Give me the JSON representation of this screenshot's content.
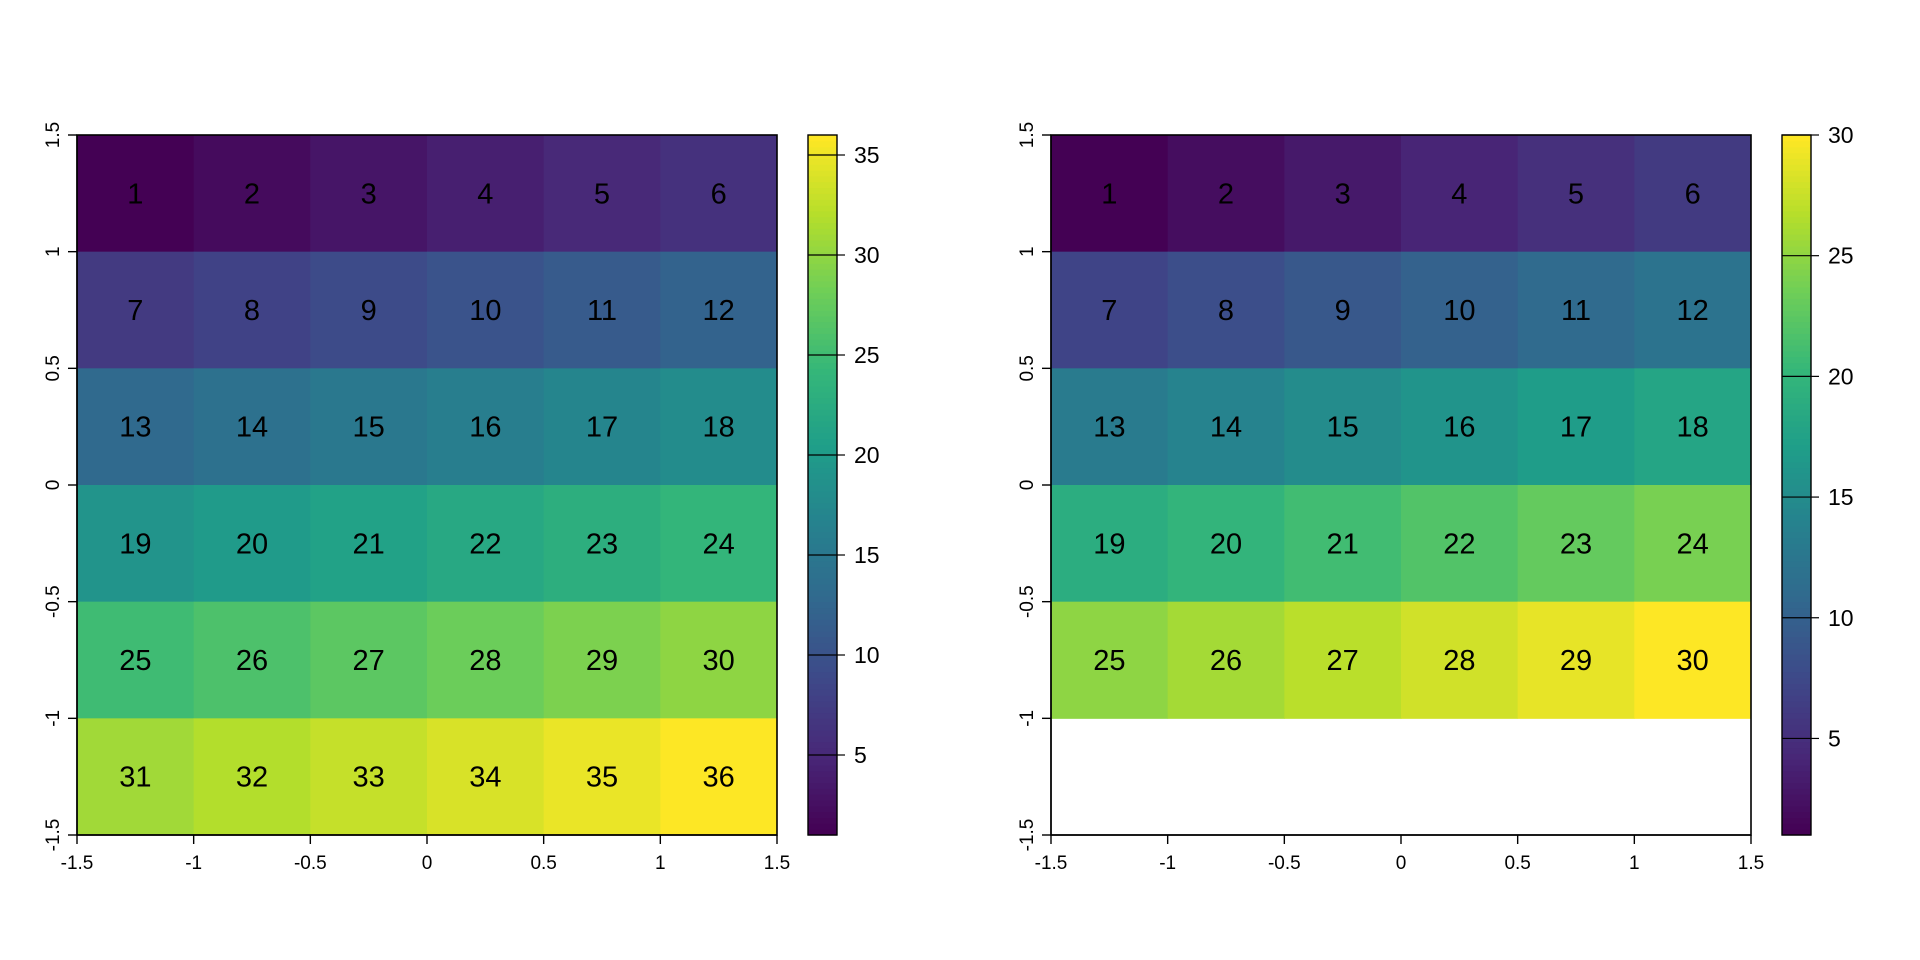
{
  "chart_data": [
    {
      "type": "heatmap",
      "title": "",
      "xlabel": "",
      "ylabel": "",
      "xlim": [
        -1.5,
        1.5
      ],
      "ylim": [
        -1.5,
        1.5
      ],
      "x_ticks": [
        "-1.5",
        "-1",
        "-0.5",
        "0",
        "0.5",
        "1",
        "1.5"
      ],
      "y_ticks": [
        "-1.5",
        "-1",
        "-0.5",
        "0",
        "0.5",
        "1",
        "1.5"
      ],
      "grid": false,
      "legend": "right",
      "colormap": "viridis",
      "ncols": 6,
      "rows": [
        [
          1,
          2,
          3,
          4,
          5,
          6
        ],
        [
          7,
          8,
          9,
          10,
          11,
          12
        ],
        [
          13,
          14,
          15,
          16,
          17,
          18
        ],
        [
          19,
          20,
          21,
          22,
          23,
          24
        ],
        [
          25,
          26,
          27,
          28,
          29,
          30
        ],
        [
          31,
          32,
          33,
          34,
          35,
          36
        ]
      ],
      "cell_labels": [
        [
          "1",
          "2",
          "3",
          "4",
          "5",
          "6"
        ],
        [
          "7",
          "8",
          "9",
          "10",
          "11",
          "12"
        ],
        [
          "13",
          "14",
          "15",
          "16",
          "17",
          "18"
        ],
        [
          "19",
          "20",
          "21",
          "22",
          "23",
          "24"
        ],
        [
          "25",
          "26",
          "27",
          "28",
          "29",
          "30"
        ],
        [
          "31",
          "32",
          "33",
          "34",
          "35",
          "36"
        ]
      ],
      "colorbar": {
        "range": [
          1,
          36
        ],
        "ticks": [
          5,
          10,
          15,
          20,
          25,
          30,
          35
        ],
        "tick_labels": [
          "5",
          "10",
          "15",
          "20",
          "25",
          "30",
          "35"
        ]
      }
    },
    {
      "type": "heatmap",
      "title": "",
      "xlabel": "",
      "ylabel": "",
      "xlim": [
        -1.5,
        1.5
      ],
      "ylim": [
        -1.5,
        1.5
      ],
      "x_ticks": [
        "-1.5",
        "-1",
        "-0.5",
        "0",
        "0.5",
        "1",
        "1.5"
      ],
      "y_ticks": [
        "-1.5",
        "-1",
        "-0.5",
        "0",
        "0.5",
        "1",
        "1.5"
      ],
      "grid": false,
      "legend": "right",
      "colormap": "viridis",
      "ncols": 6,
      "rows": [
        [
          1,
          2,
          3,
          4,
          5,
          6
        ],
        [
          7,
          8,
          9,
          10,
          11,
          12
        ],
        [
          13,
          14,
          15,
          16,
          17,
          18
        ],
        [
          19,
          20,
          21,
          22,
          23,
          24
        ],
        [
          25,
          26,
          27,
          28,
          29,
          30
        ]
      ],
      "cell_labels": [
        [
          "1",
          "2",
          "3",
          "4",
          "5",
          "6"
        ],
        [
          "7",
          "8",
          "9",
          "10",
          "11",
          "12"
        ],
        [
          "13",
          "14",
          "15",
          "16",
          "17",
          "18"
        ],
        [
          "19",
          "20",
          "21",
          "22",
          "23",
          "24"
        ],
        [
          "25",
          "26",
          "27",
          "28",
          "29",
          "30"
        ]
      ],
      "colorbar": {
        "range": [
          1,
          30
        ],
        "ticks": [
          5,
          10,
          15,
          20,
          25,
          30
        ],
        "tick_labels": [
          "5",
          "10",
          "15",
          "20",
          "25",
          "30"
        ]
      }
    }
  ]
}
